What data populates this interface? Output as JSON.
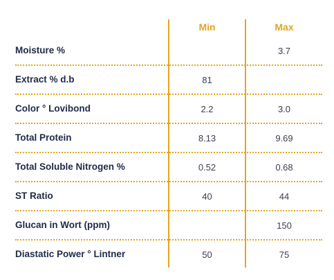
{
  "table": {
    "headers": {
      "min": "Min",
      "max": "Max"
    },
    "rows": [
      {
        "label": "Moisture %",
        "min": "",
        "max": "3.7"
      },
      {
        "label": "Extract % d.b",
        "min": "81",
        "max": ""
      },
      {
        "label": "Color ° Lovibond",
        "min": "2.2",
        "max": "3.0"
      },
      {
        "label": "Total Protein",
        "min": "8.13",
        "max": "9.69"
      },
      {
        "label": "Total Soluble Nitrogen %",
        "min": "0.52",
        "max": "0.68"
      },
      {
        "label": "ST Ratio",
        "min": "40",
        "max": "44"
      },
      {
        "label": "Glucan in Wort (ppm)",
        "min": "",
        "max": "150"
      },
      {
        "label": "Diastatic Power ° Lintner",
        "min": "50",
        "max": "75"
      }
    ]
  },
  "colors": {
    "accent": "#e3a51f",
    "label_text": "#1f2a48",
    "value_text": "#3a3f4f"
  }
}
